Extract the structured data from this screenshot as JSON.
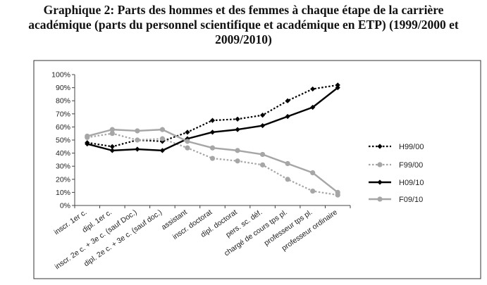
{
  "title": {
    "line1": "Graphique 2: Parts des hommes et des femmes à chaque étape de la carrière",
    "line2": "académique (parts du personnel scientifique et académique en ETP) (1999/2000 et",
    "line3": "2009/2010)"
  },
  "chart_data": {
    "type": "line",
    "title": "Graphique 2: Parts des hommes et des femmes à chaque étape de la carrière académique (parts du personnel scientifique et académique en ETP) (1999/2000 et 2009/2010)",
    "xlabel": "",
    "ylabel": "",
    "ylim": [
      0,
      100
    ],
    "yticks": [
      "0%",
      "10%",
      "20%",
      "30%",
      "40%",
      "50%",
      "60%",
      "70%",
      "80%",
      "90%",
      "100%"
    ],
    "grid": false,
    "legend_position": "right",
    "categories": [
      "inscr. 1er c.",
      "dipl. 1er c.",
      "inscr. 2e c. + 3e c. (sauf Doc.)",
      "dipl. 2e c. + 3e c. (sauf doc.)",
      "assistant",
      "inscr. doctorat",
      "dipl. doctorat",
      "pers. sc. déf.",
      "chargé de cours tps pl.",
      "professeur tps pl.",
      "professeur ordinaire"
    ],
    "series": [
      {
        "name": "H99/00",
        "style": "dotted",
        "color": "#000000",
        "marker": "diamond",
        "values": [
          48,
          45,
          50,
          49,
          56,
          65,
          66,
          69,
          80,
          89,
          92
        ]
      },
      {
        "name": "F99/00",
        "style": "dotted",
        "color": "#a6a6a6",
        "marker": "circle",
        "values": [
          52,
          55,
          50,
          51,
          44,
          36,
          34,
          31,
          20,
          11,
          8
        ]
      },
      {
        "name": "H09/10",
        "style": "solid",
        "color": "#000000",
        "marker": "diamond",
        "values": [
          47,
          42,
          43,
          42,
          51,
          56,
          58,
          61,
          68,
          75,
          90
        ]
      },
      {
        "name": "F09/10",
        "style": "solid",
        "color": "#a6a6a6",
        "marker": "circle",
        "values": [
          53,
          58,
          57,
          58,
          49,
          44,
          42,
          39,
          32,
          25,
          10
        ]
      }
    ]
  }
}
